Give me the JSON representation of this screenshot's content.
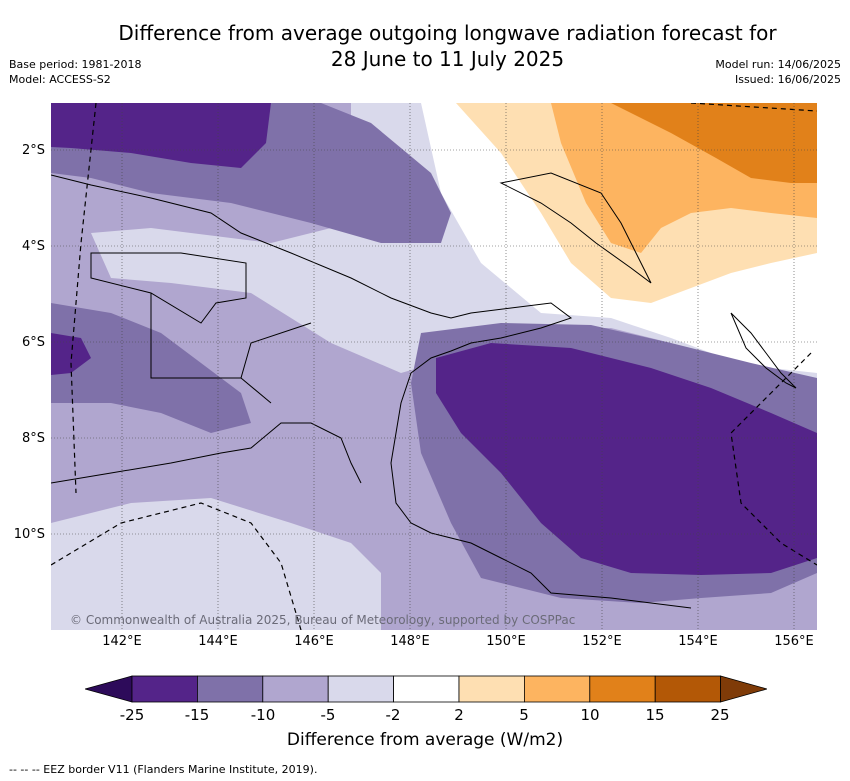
{
  "title": {
    "line1": "Difference from average outgoing longwave radiation forecast for",
    "line2": "28 June to 11 July 2025"
  },
  "meta": {
    "base_period": "Base period: 1981-2018",
    "model": "Model: ACCESS-S2",
    "model_run": "Model run: 14/06/2025",
    "issued": "Issued: 16/06/2025"
  },
  "axes": {
    "lat_labels": [
      "2°S",
      "4°S",
      "6°S",
      "8°S",
      "10°S"
    ],
    "lon_labels": [
      "142°E",
      "144°E",
      "146°E",
      "148°E",
      "150°E",
      "152°E",
      "154°E",
      "156°E"
    ]
  },
  "colorbar": {
    "title": "Difference from average (W/m2)",
    "ticks": [
      "-25",
      "-15",
      "-10",
      "-5",
      "-2",
      "2",
      "5",
      "10",
      "15",
      "25"
    ],
    "colors": [
      "#2d0b5a",
      "#542489",
      "#7f71a9",
      "#b0a6cf",
      "#d9d9eb",
      "#ffffff",
      "#fedfb2",
      "#fdb460",
      "#e1811a",
      "#b35806",
      "#7f3b08"
    ]
  },
  "copyright": "© Commonwealth of Australia 2025, Bureau of Meteorology, supported by COSPPac",
  "footnote": "--  --  -- EEZ border V11 (Flanders Marine Institute, 2019)."
}
